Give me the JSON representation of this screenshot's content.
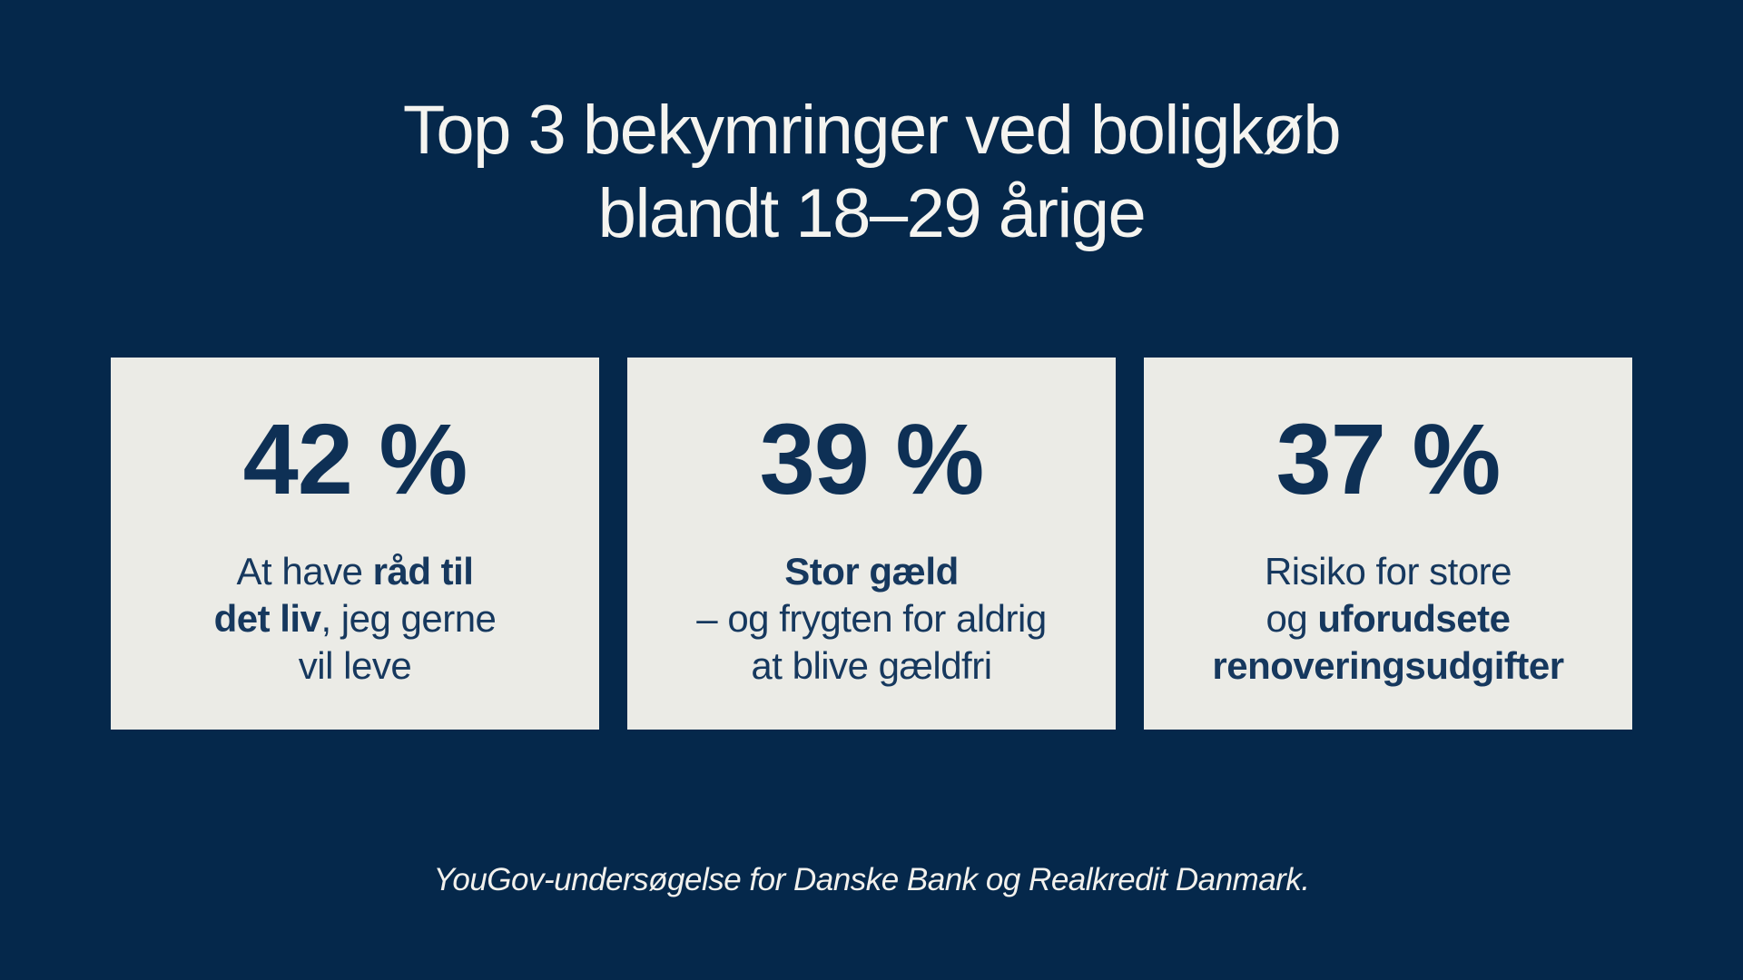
{
  "header": {
    "title_line1": "Top 3 bekymringer ved boligkøb",
    "title_line2": "blandt 18–29 årige"
  },
  "cards": [
    {
      "value": "42 %",
      "lines": [
        {
          "segments": [
            {
              "text": "At have ",
              "bold": false
            },
            {
              "text": "råd til",
              "bold": true
            }
          ]
        },
        {
          "segments": [
            {
              "text": "det liv",
              "bold": true
            },
            {
              "text": ", jeg gerne",
              "bold": false
            }
          ]
        },
        {
          "segments": [
            {
              "text": "vil leve",
              "bold": false
            }
          ]
        }
      ]
    },
    {
      "value": "39 %",
      "lines": [
        {
          "segments": [
            {
              "text": "Stor gæld",
              "bold": true
            }
          ]
        },
        {
          "segments": [
            {
              "text": "– og frygten for aldrig",
              "bold": false
            }
          ]
        },
        {
          "segments": [
            {
              "text": "at blive gældfri",
              "bold": false
            }
          ]
        }
      ]
    },
    {
      "value": "37 %",
      "lines": [
        {
          "segments": [
            {
              "text": "Risiko for store",
              "bold": false
            }
          ]
        },
        {
          "segments": [
            {
              "text": "og ",
              "bold": false
            },
            {
              "text": "uforudsete",
              "bold": true
            }
          ]
        },
        {
          "segments": [
            {
              "text": "renoveringsudgifter",
              "bold": true
            }
          ]
        }
      ]
    }
  ],
  "footer": {
    "source": "YouGov-undersøgelse for Danske Bank og Realkredit Danmark."
  },
  "colors": {
    "background": "#05284B",
    "card_background": "#EBEBE6",
    "stat_number": "#0E3055",
    "card_text": "#16385E",
    "title_text": "#F5F4F0"
  },
  "chart_data": {
    "type": "table",
    "title": "Top 3 bekymringer ved boligkøb blandt 18–29 årige",
    "categories": [
      "At have råd til det liv, jeg gerne vil leve",
      "Stor gæld – og frygten for aldrig at blive gældfri",
      "Risiko for store og uforudsete renoveringsudgifter"
    ],
    "values": [
      42,
      39,
      37
    ],
    "unit": "%",
    "source": "YouGov-undersøgelse for Danske Bank og Realkredit Danmark."
  }
}
